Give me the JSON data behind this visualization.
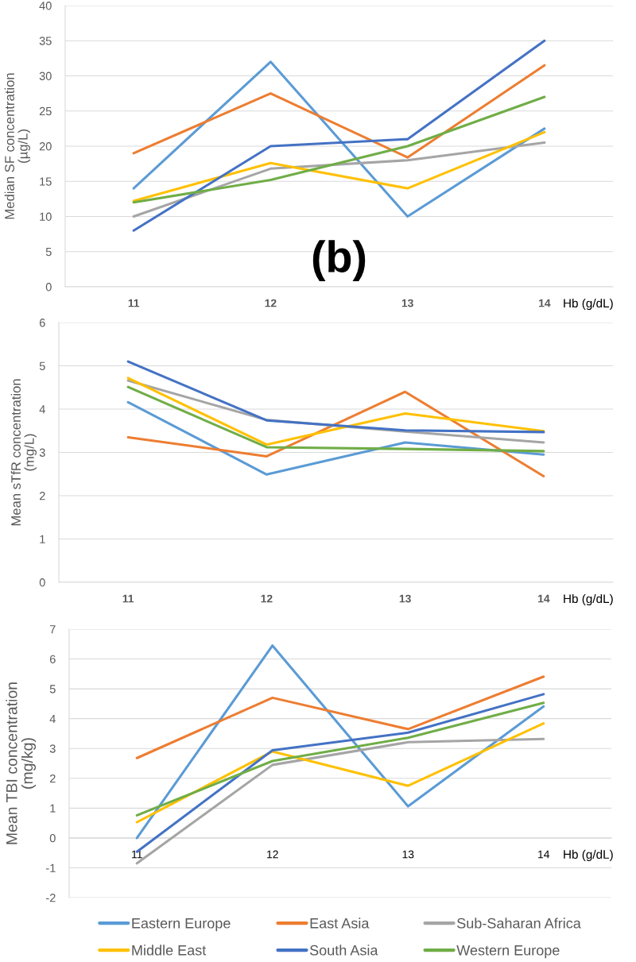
{
  "chart_data": [
    {
      "type": "line",
      "ylabel": "Median SF concentration\n(µg/L)",
      "xlabel": "Hb (g/dL)",
      "categories": [
        "11",
        "12",
        "13",
        "14"
      ],
      "series": [
        {
          "color": "#5b9bd5",
          "values": [
            14.0,
            32.0,
            10.0,
            22.5
          ]
        },
        {
          "color": "#ed7d31",
          "values": [
            19.0,
            27.5,
            18.4,
            31.5
          ]
        },
        {
          "color": "#a5a5a5",
          "values": [
            10.0,
            16.8,
            18.0,
            20.5
          ]
        },
        {
          "color": "#ffc000",
          "values": [
            12.2,
            17.6,
            14.0,
            22.0
          ]
        },
        {
          "color": "#4472c4",
          "values": [
            8.0,
            20.0,
            21.0,
            35.0
          ]
        },
        {
          "color": "#70ad47",
          "values": [
            12.0,
            15.2,
            20.0,
            27.0
          ]
        }
      ],
      "ylim": [
        0,
        40
      ],
      "yticks": [
        0,
        5,
        10,
        15,
        20,
        25,
        30,
        35,
        40
      ],
      "grid": "y",
      "annotations": [
        "(b)"
      ]
    },
    {
      "type": "line",
      "ylabel": "Mean sTfR concentration\n(mg/L)",
      "xlabel": "Hb (g/dL)",
      "categories": [
        "11",
        "12",
        "13",
        "14"
      ],
      "series": [
        {
          "color": "#5b9bd5",
          "values": [
            4.16,
            2.49,
            3.23,
            2.95
          ]
        },
        {
          "color": "#ed7d31",
          "values": [
            3.35,
            2.91,
            4.4,
            2.45
          ]
        },
        {
          "color": "#a5a5a5",
          "values": [
            4.66,
            3.75,
            3.48,
            3.23
          ]
        },
        {
          "color": "#ffc000",
          "values": [
            4.72,
            3.18,
            3.9,
            3.49
          ]
        },
        {
          "color": "#4472c4",
          "values": [
            5.1,
            3.74,
            3.51,
            3.47
          ]
        },
        {
          "color": "#70ad47",
          "values": [
            4.51,
            3.12,
            3.08,
            3.03
          ]
        }
      ],
      "ylim": [
        0,
        6
      ],
      "yticks": [
        0,
        1,
        2,
        3,
        4,
        5,
        6
      ],
      "grid": "y"
    },
    {
      "type": "line",
      "ylabel": "Mean TBI concentration\n(mg/kg)",
      "xlabel": "Hb (g/dL)",
      "categories": [
        "11",
        "12",
        "13",
        "14"
      ],
      "series": [
        {
          "name": "Eastern Europe",
          "color": "#5b9bd5",
          "values": [
            0.0,
            6.45,
            1.06,
            4.41
          ]
        },
        {
          "name": "East Asia",
          "color": "#ed7d31",
          "values": [
            2.68,
            4.7,
            3.65,
            5.41
          ]
        },
        {
          "name": "Sub-Saharan Africa",
          "color": "#a5a5a5",
          "values": [
            -0.85,
            2.45,
            3.21,
            3.32
          ]
        },
        {
          "name": "Middle East",
          "color": "#ffc000",
          "values": [
            0.53,
            2.9,
            1.75,
            3.84
          ]
        },
        {
          "name": "South Asia",
          "color": "#4472c4",
          "values": [
            -0.46,
            2.94,
            3.53,
            4.82
          ]
        },
        {
          "name": "Western Europe",
          "color": "#70ad47",
          "values": [
            0.76,
            2.58,
            3.36,
            4.53
          ]
        }
      ],
      "ylim": [
        -2,
        7
      ],
      "yticks": [
        -2,
        -1,
        0,
        1,
        2,
        3,
        4,
        5,
        6,
        7
      ],
      "grid": "y",
      "legend": "bottom"
    }
  ]
}
